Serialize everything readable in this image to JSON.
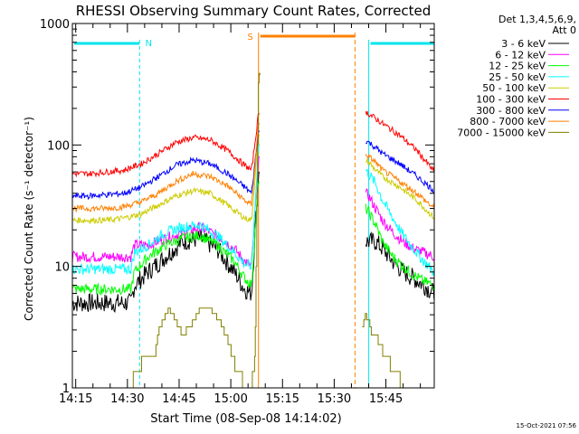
{
  "chart_data": {
    "type": "line",
    "title": "RHESSI Observing Summary Count Rates, Corrected",
    "xlabel": "Start Time (08-Sep-08 14:14:02)",
    "ylabel": "Corrected Count Rate (s⁻¹ detector⁻¹)",
    "yscale": "log",
    "ylim": [
      1,
      1000
    ],
    "xlim_minutes": [
      0,
      105
    ],
    "x_ticks": [
      "14:15",
      "14:30",
      "14:45",
      "15:00",
      "15:15",
      "15:30",
      "15:45"
    ],
    "y_ticks": [
      "1",
      "10",
      "100",
      "1000"
    ],
    "legend": {
      "title_lines": [
        "Det 1,3,4,5,6,9,",
        "Att 0"
      ],
      "placement": "outside-right",
      "entries": [
        "3 - 6 keV",
        "6 - 12 keV",
        "12 - 25 keV",
        "25 - 50 keV",
        "50 - 100 keV",
        "100 - 300 keV",
        "300 - 800 keV",
        "800 - 7000 keV",
        "7000 - 15000 keV"
      ]
    },
    "annotations": {
      "night_label": "N",
      "saa_label": "S",
      "timestamp": "15-Oct-2021 07:56"
    },
    "intervals": {
      "night": [
        [
          0,
          19.5
        ],
        [
          86,
          105
        ]
      ],
      "saa": [
        [
          54,
          82
        ]
      ]
    },
    "series": [
      {
        "name": "3 - 6 keV",
        "color": "#000000",
        "x": [
          0,
          5,
          10,
          17,
          18,
          22,
          27,
          32,
          37,
          42,
          47,
          50,
          52,
          54,
          85,
          86,
          88,
          90,
          93,
          96,
          99,
          102,
          105
        ],
        "y": [
          5.0,
          5.0,
          5.0,
          5.0,
          7.0,
          9.0,
          12,
          16,
          17,
          14,
          9,
          6.5,
          6,
          60,
          16,
          16,
          16,
          14,
          11,
          9,
          8,
          7,
          6
        ]
      },
      {
        "name": "6 - 12 keV",
        "color": "#ff00ff",
        "x": [
          0,
          5,
          10,
          15,
          17,
          18,
          22,
          27,
          32,
          37,
          42,
          47,
          50,
          52,
          54,
          85,
          86,
          88,
          90,
          93,
          96,
          99,
          102,
          105
        ],
        "y": [
          12,
          12,
          12,
          12,
          12,
          15,
          15,
          17,
          19,
          21,
          18,
          14,
          11,
          10,
          80,
          40,
          38,
          30,
          24,
          19,
          16,
          14,
          13,
          12
        ]
      },
      {
        "name": "12 - 25 keV",
        "color": "#00ff00",
        "x": [
          0,
          5,
          10,
          17,
          18,
          22,
          27,
          32,
          37,
          42,
          47,
          50,
          52,
          54,
          85,
          86,
          88,
          90,
          93,
          96,
          99,
          102,
          105
        ],
        "y": [
          6.5,
          6.5,
          6.5,
          6.5,
          9,
          12,
          15,
          17,
          18,
          15,
          11,
          8,
          7,
          50,
          30,
          28,
          22,
          16,
          12,
          10,
          8.5,
          7.5,
          7
        ]
      },
      {
        "name": "25 - 50 keV",
        "color": "#00ffff",
        "x": [
          0,
          5,
          10,
          15,
          17,
          18,
          22,
          27,
          32,
          37,
          42,
          47,
          50,
          52,
          54,
          85,
          86,
          88,
          90,
          93,
          96,
          99,
          102,
          105
        ],
        "y": [
          9.5,
          9.5,
          9.5,
          9.5,
          9.5,
          13,
          15,
          19,
          21,
          22,
          18,
          13,
          10.5,
          10,
          100,
          62,
          58,
          48,
          35,
          25,
          18,
          14,
          11,
          9
        ]
      },
      {
        "name": "50 - 100 keV",
        "color": "#cccc00",
        "x": [
          0,
          5,
          10,
          15,
          20,
          25,
          30,
          35,
          40,
          45,
          50,
          52,
          54,
          85,
          86,
          88,
          90,
          95,
          100,
          105
        ],
        "y": [
          24,
          24,
          24,
          25,
          27,
          32,
          38,
          42,
          40,
          32,
          25,
          24,
          120,
          75,
          72,
          62,
          55,
          45,
          35,
          25
        ]
      },
      {
        "name": "100 - 300 keV",
        "color": "#ff0000",
        "x": [
          0,
          5,
          10,
          15,
          20,
          25,
          30,
          35,
          40,
          45,
          50,
          52,
          54,
          85,
          86,
          88,
          90,
          95,
          100,
          105
        ],
        "y": [
          58,
          58,
          60,
          62,
          70,
          85,
          105,
          115,
          110,
          90,
          68,
          62,
          180,
          190,
          180,
          165,
          150,
          120,
          90,
          60
        ]
      },
      {
        "name": "300 - 800 keV",
        "color": "#0000ff",
        "x": [
          0,
          5,
          10,
          15,
          20,
          25,
          30,
          35,
          40,
          45,
          50,
          52,
          54,
          85,
          86,
          88,
          90,
          95,
          100,
          105
        ],
        "y": [
          38,
          38,
          39,
          40,
          45,
          55,
          68,
          75,
          70,
          58,
          45,
          40,
          130,
          110,
          105,
          95,
          85,
          70,
          55,
          42
        ]
      },
      {
        "name": "800 - 7000 keV",
        "color": "#ff8000",
        "x": [
          0,
          5,
          10,
          15,
          20,
          25,
          30,
          35,
          40,
          45,
          50,
          52,
          54,
          85,
          86,
          88,
          90,
          95,
          100,
          105
        ],
        "y": [
          30,
          30,
          30,
          31,
          34,
          40,
          50,
          58,
          55,
          46,
          35,
          32,
          150,
          85,
          80,
          72,
          62,
          50,
          40,
          30
        ]
      },
      {
        "name": "7000 - 15000 keV",
        "color": "#808000",
        "x": [
          17,
          18,
          21,
          24,
          25,
          28,
          30,
          32,
          35,
          37,
          40,
          43,
          45,
          47,
          50,
          52,
          53,
          54,
          84,
          85,
          86,
          87,
          88,
          90,
          92,
          94,
          96,
          98,
          99
        ],
        "y": [
          1,
          1.3,
          1.8,
          1.8,
          3,
          4.5,
          3.6,
          2.7,
          3.5,
          4.5,
          4.5,
          3.5,
          2.5,
          1.6,
          1.0,
          1.0,
          2.0,
          400,
          3,
          4,
          3.6,
          2.7,
          2.7,
          2,
          1.6,
          1.3,
          1.0,
          1.0,
          1.0
        ]
      }
    ]
  }
}
